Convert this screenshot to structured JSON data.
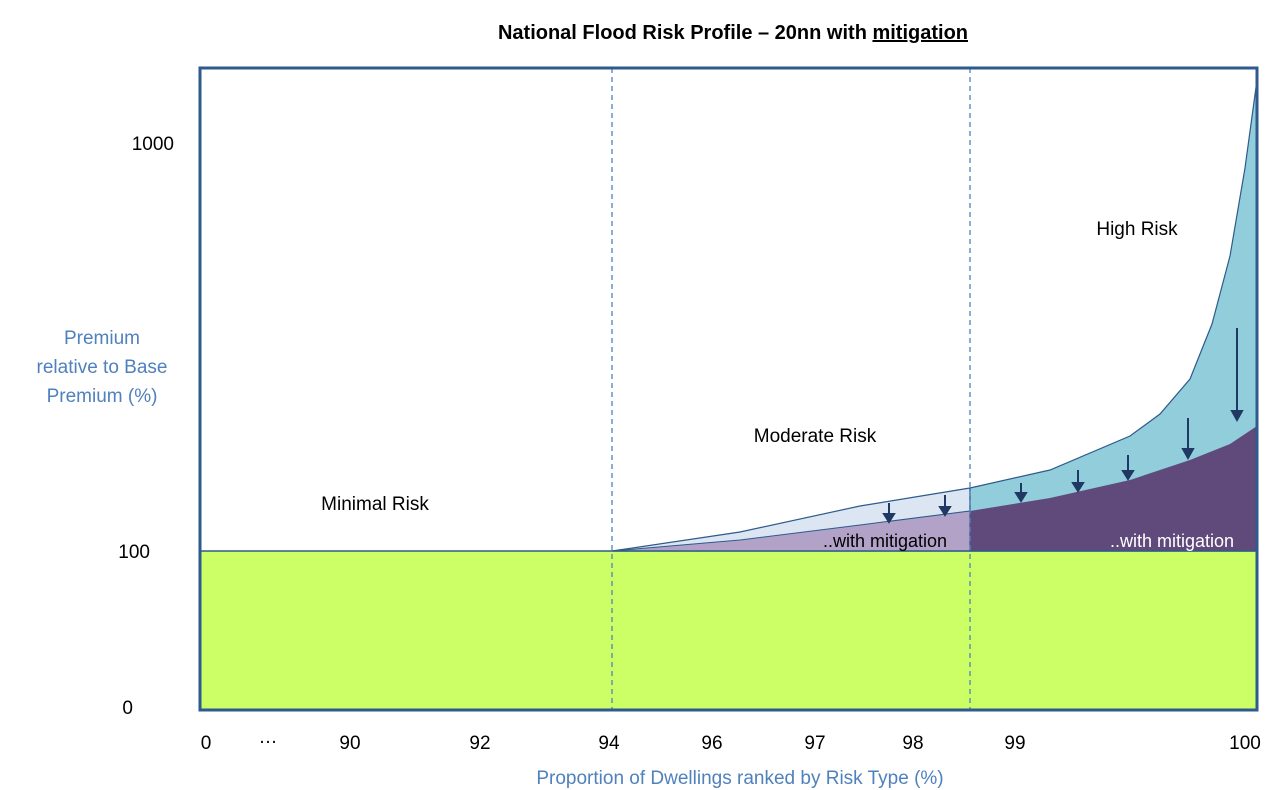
{
  "chart_data": {
    "type": "area",
    "title_prefix": "National Flood Risk Profile – 20nn with ",
    "title_emphasis": "mitigation",
    "xlabel": "Proportion of Dwellings ranked by Risk Type (%)",
    "ylabel_lines": [
      "Premium",
      "relative to Base",
      "Premium (%)"
    ],
    "x_ticks": [
      "0",
      "…",
      "90",
      "92",
      "94",
      "96",
      "97",
      "98",
      "99",
      "100"
    ],
    "y_ticks": [
      "1000",
      "100",
      "0"
    ],
    "regions": [
      {
        "name": "Minimal Risk",
        "x_from": "0",
        "x_to": "94"
      },
      {
        "name": "Moderate Risk",
        "x_from": "94",
        "x_to": "98.5"
      },
      {
        "name": "High Risk",
        "x_from": "98.5",
        "x_to": "100"
      }
    ],
    "mitigation_labels": [
      "..with mitigation",
      "..with mitigation"
    ],
    "series": [
      {
        "name": "Base Premium",
        "values": [
          100,
          100,
          100,
          100
        ]
      },
      {
        "name": "Moderate Risk",
        "values": [
          100,
          108,
          118,
          126
        ]
      },
      {
        "name": "Moderate Risk ..with mitigation",
        "values": [
          100,
          104,
          110,
          115
        ]
      },
      {
        "name": "High Risk",
        "values": [
          126,
          150,
          200,
          400,
          1000
        ]
      },
      {
        "name": "High Risk ..with mitigation",
        "values": [
          115,
          125,
          150,
          180,
          230
        ]
      }
    ],
    "colors": {
      "base": "#ccff66",
      "moderate": "#dce6f2",
      "moderate_mitigated": "#b3a2c7",
      "high": "#92cddc",
      "high_mitigated": "#604a7b",
      "frame": "#2e5a8c",
      "divider": "#4f81bd",
      "arrow": "#1f3864"
    }
  }
}
